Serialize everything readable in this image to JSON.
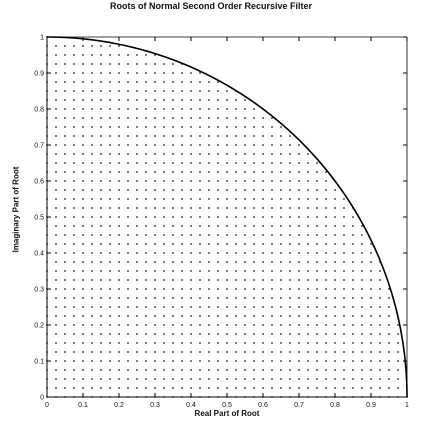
{
  "chart_data": {
    "type": "scatter",
    "title": "Roots of Normal Second Order Recursive Filter",
    "xlabel": "Real Part of Root",
    "ylabel": "Imaginary Part of Root",
    "xlim": [
      0,
      1
    ],
    "ylim": [
      0,
      1
    ],
    "x_ticks": [
      "0",
      "0.1",
      "0.2",
      "0.3",
      "0.4",
      "0.5",
      "0.6",
      "0.7",
      "0.8",
      "0.9",
      "1"
    ],
    "y_ticks": [
      "0",
      "0.1",
      "0.2",
      "0.3",
      "0.4",
      "0.5",
      "0.6",
      "0.7",
      "0.8",
      "0.9",
      "1"
    ],
    "grid": false,
    "root_grid": {
      "spacing": 0.025,
      "range": [
        0,
        1
      ],
      "constraint": "x^2 + y^2 <= 1"
    },
    "boundary_curve": {
      "type": "unit-circle-quarter",
      "radius": 1
    },
    "colors": {
      "points": "#222222",
      "curve": "#000000",
      "axes": "#000000"
    }
  }
}
